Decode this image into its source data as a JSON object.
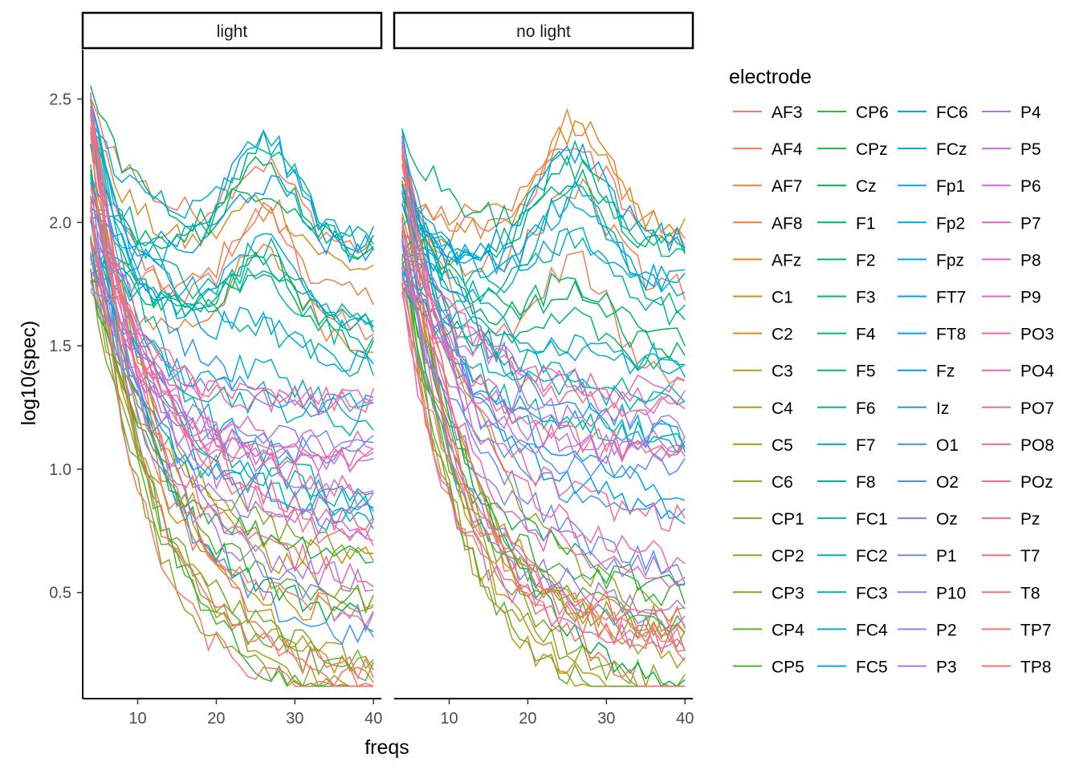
{
  "chart_data": {
    "type": "line",
    "xlabel": "freqs",
    "ylabel": "log10(spec)",
    "xlim": [
      3,
      41
    ],
    "ylim": [
      0.07,
      2.7
    ],
    "x_ticks": [
      10,
      20,
      30,
      40
    ],
    "y_ticks": [
      0.5,
      1.0,
      1.5,
      2.0,
      2.5
    ],
    "y_tick_labels": [
      "0.5",
      "1.0",
      "1.5",
      "2.0",
      "2.5"
    ],
    "x_tick_labels": [
      "10",
      "20",
      "30",
      "40"
    ],
    "facets": [
      "light",
      "no light"
    ],
    "grid": false,
    "x": [
      4,
      5,
      6,
      7,
      8,
      9,
      10,
      11,
      12,
      13,
      14,
      15,
      16,
      17,
      18,
      19,
      20,
      21,
      22,
      23,
      24,
      25,
      26,
      27,
      28,
      29,
      30,
      31,
      32,
      33,
      34,
      35,
      36,
      37,
      38,
      39,
      40
    ],
    "legend": {
      "title": "electrode",
      "position": "right",
      "columns": 4,
      "entries": [
        {
          "name": "AF3",
          "color": "#F8766D"
        },
        {
          "name": "AF4",
          "color": "#F47A58"
        },
        {
          "name": "AF7",
          "color": "#EF7F44"
        },
        {
          "name": "AF8",
          "color": "#E8842F"
        },
        {
          "name": "AFz",
          "color": "#DF891E"
        },
        {
          "name": "C1",
          "color": "#D58E14"
        },
        {
          "name": "C2",
          "color": "#CB9312"
        },
        {
          "name": "C3",
          "color": "#C09715"
        },
        {
          "name": "C4",
          "color": "#B49B18"
        },
        {
          "name": "C5",
          "color": "#A89F1B"
        },
        {
          "name": "C6",
          "color": "#9CA21F"
        },
        {
          "name": "CP1",
          "color": "#8FA623"
        },
        {
          "name": "CP2",
          "color": "#82A827"
        },
        {
          "name": "CP3",
          "color": "#73AB2B"
        },
        {
          "name": "CP4",
          "color": "#64AD30"
        },
        {
          "name": "CP5",
          "color": "#52AF36"
        },
        {
          "name": "CP6",
          "color": "#3DB13D"
        },
        {
          "name": "CPz",
          "color": "#1FB245"
        },
        {
          "name": "Cz",
          "color": "#00B34E"
        },
        {
          "name": "F1",
          "color": "#00B458"
        },
        {
          "name": "F2",
          "color": "#00B562"
        },
        {
          "name": "F3",
          "color": "#00B56C"
        },
        {
          "name": "F4",
          "color": "#00B677"
        },
        {
          "name": "F5",
          "color": "#00B681"
        },
        {
          "name": "F6",
          "color": "#00B68B"
        },
        {
          "name": "F7",
          "color": "#00B695"
        },
        {
          "name": "F8",
          "color": "#00B59F"
        },
        {
          "name": "FC1",
          "color": "#00B5A8"
        },
        {
          "name": "FC2",
          "color": "#00B4B1"
        },
        {
          "name": "FC3",
          "color": "#00B3BA"
        },
        {
          "name": "FC4",
          "color": "#00B2C2"
        },
        {
          "name": "FC5",
          "color": "#00B0CA"
        },
        {
          "name": "FC6",
          "color": "#00AFD1"
        },
        {
          "name": "FCz",
          "color": "#00ADD8"
        },
        {
          "name": "Fp1",
          "color": "#00AADF"
        },
        {
          "name": "Fp2",
          "color": "#00A8E5"
        },
        {
          "name": "Fpz",
          "color": "#00A5EA"
        },
        {
          "name": "FT7",
          "color": "#00A2EF"
        },
        {
          "name": "FT8",
          "color": "#009FF3"
        },
        {
          "name": "Fz",
          "color": "#069BF6"
        },
        {
          "name": "Iz",
          "color": "#2697F8"
        },
        {
          "name": "O1",
          "color": "#3D93F9"
        },
        {
          "name": "O2",
          "color": "#528FF9"
        },
        {
          "name": "Oz",
          "color": "#678AF8"
        },
        {
          "name": "P1",
          "color": "#7A85F6"
        },
        {
          "name": "P10",
          "color": "#8C80F3"
        },
        {
          "name": "P2",
          "color": "#9C7BEF"
        },
        {
          "name": "P3",
          "color": "#AC76EA"
        },
        {
          "name": "P4",
          "color": "#BA72E4"
        },
        {
          "name": "P5",
          "color": "#C66EDE"
        },
        {
          "name": "P6",
          "color": "#D16AD6"
        },
        {
          "name": "P7",
          "color": "#DB67CE"
        },
        {
          "name": "P8",
          "color": "#E366C5"
        },
        {
          "name": "P9",
          "color": "#EA65BC"
        },
        {
          "name": "PO3",
          "color": "#F065B2"
        },
        {
          "name": "PO4",
          "color": "#F466A8"
        },
        {
          "name": "PO7",
          "color": "#F7689D"
        },
        {
          "name": "PO8",
          "color": "#F96A93"
        },
        {
          "name": "POz",
          "color": "#FA6C89"
        },
        {
          "name": "Pz",
          "color": "#FA6E7F"
        },
        {
          "name": "T7",
          "color": "#F97176"
        },
        {
          "name": "T8",
          "color": "#F8736D"
        },
        {
          "name": "TP7",
          "color": "#F87571"
        },
        {
          "name": "TP8",
          "color": "#F8766D"
        }
      ]
    },
    "series_note": "64 electrode spectra per panel, decaying from ~1.8-2.6 at 4 Hz; frontal (AF/F) channels show an alpha-band bump peaking ~2.2-2.3 near 25-28 Hz; central/parietal channels fall to ~0.15-0.8 at 40 Hz",
    "series_shape": {
      "light": {
        "start_range": [
          1.75,
          2.57
        ],
        "end_range": [
          0.22,
          2.0
        ]
      },
      "no light": {
        "start_range": [
          1.7,
          2.38
        ],
        "end_range": [
          0.13,
          2.05
        ]
      }
    }
  }
}
